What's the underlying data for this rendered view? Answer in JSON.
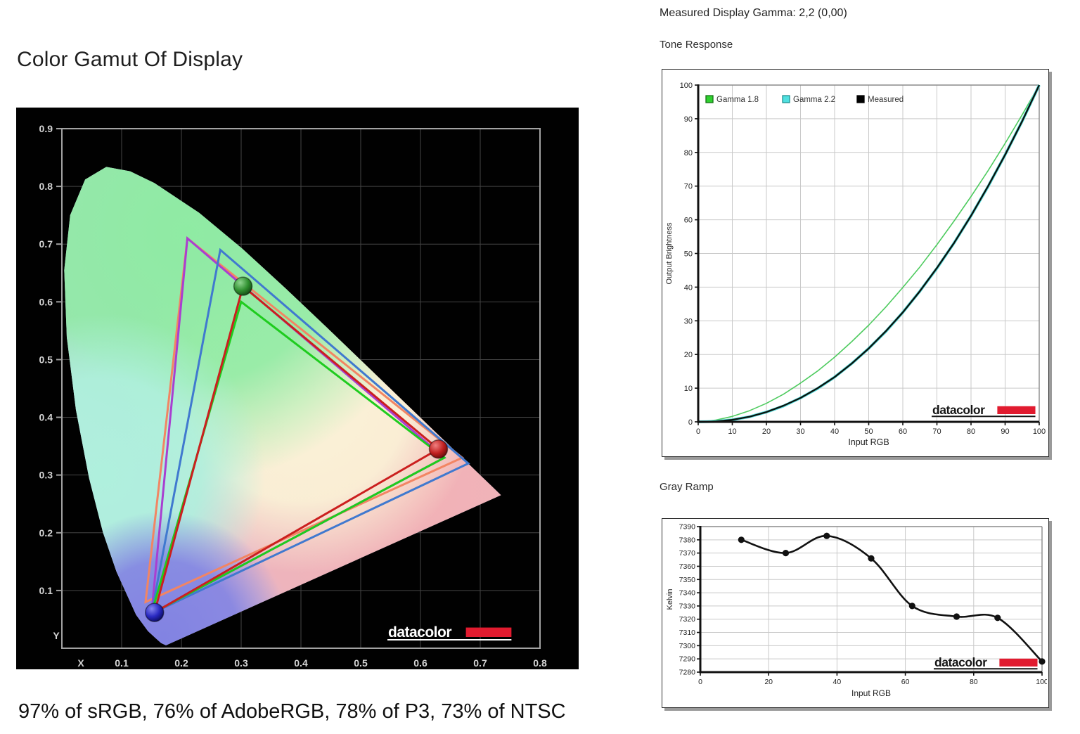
{
  "left_panel": {
    "title": "Color Gamut Of Display",
    "caption": "97% of sRGB, 76% of AdobeRGB, 78% of P3, 73% of NTSC"
  },
  "right_panel": {
    "gamma_heading": "Measured Display Gamma: 2,2 (0,00)",
    "tone_title": "Tone Response",
    "gray_title": "Gray Ramp"
  },
  "logo": {
    "text": "datacolor",
    "bar_color": "#e11b2f"
  },
  "chart_data": [
    {
      "id": "cie",
      "type": "scatter",
      "title": "Color Gamut Of Display",
      "xlabel": "X",
      "ylabel": "Y",
      "xlim": [
        0,
        0.8
      ],
      "ylim": [
        0,
        0.9
      ],
      "xticks": [
        0.1,
        0.2,
        0.3,
        0.4,
        0.5,
        0.6,
        0.7,
        0.8
      ],
      "yticks": [
        0.1,
        0.2,
        0.3,
        0.4,
        0.5,
        0.6,
        0.7,
        0.8,
        0.9
      ],
      "bg": "#010101",
      "grid_color": "#454545",
      "frame_color": "#a3a3a3",
      "tick_color": "#d4d4d4",
      "fill": {
        "base": "#cbc4f1",
        "green": "#8feba3",
        "cyan": "#aff0dd",
        "blue": "#8283e2",
        "pink": "#f2b2b6",
        "center": "#fbf7d9"
      },
      "locus": [
        [
          0.1741,
          0.005
        ],
        [
          0.166,
          0.009
        ],
        [
          0.1566,
          0.0177
        ],
        [
          0.144,
          0.0297
        ],
        [
          0.1241,
          0.0578
        ],
        [
          0.0913,
          0.1327
        ],
        [
          0.0687,
          0.2007
        ],
        [
          0.0454,
          0.295
        ],
        [
          0.0235,
          0.4127
        ],
        [
          0.0082,
          0.5384
        ],
        [
          0.0039,
          0.6548
        ],
        [
          0.0139,
          0.7502
        ],
        [
          0.0389,
          0.812
        ],
        [
          0.0743,
          0.8338
        ],
        [
          0.1142,
          0.8262
        ],
        [
          0.1547,
          0.8059
        ],
        [
          0.2296,
          0.7543
        ],
        [
          0.3016,
          0.6923
        ],
        [
          0.3731,
          0.6245
        ],
        [
          0.4441,
          0.5547
        ],
        [
          0.5125,
          0.4866
        ],
        [
          0.5752,
          0.4242
        ],
        [
          0.627,
          0.3725
        ],
        [
          0.6658,
          0.334
        ],
        [
          0.6915,
          0.3083
        ],
        [
          0.7079,
          0.292
        ],
        [
          0.719,
          0.2809
        ],
        [
          0.7347,
          0.2653
        ]
      ],
      "gamuts": [
        {
          "name": "NTSC",
          "color": "#f28563",
          "points": [
            [
              0.67,
              0.33
            ],
            [
              0.21,
              0.71
            ],
            [
              0.14,
              0.08
            ]
          ]
        },
        {
          "name": "AdobeRGB",
          "color": "#a93fd1",
          "points": [
            [
              0.64,
              0.33
            ],
            [
              0.21,
              0.71
            ],
            [
              0.15,
              0.06
            ]
          ]
        },
        {
          "name": "P3",
          "color": "#4079cf",
          "points": [
            [
              0.68,
              0.32
            ],
            [
              0.265,
              0.69
            ],
            [
              0.15,
              0.06
            ]
          ]
        },
        {
          "name": "sRGB",
          "color": "#1ecc1e",
          "points": [
            [
              0.64,
              0.33
            ],
            [
              0.3,
              0.6
            ],
            [
              0.15,
              0.06
            ]
          ]
        },
        {
          "name": "Measured",
          "color": "#cb1f1f",
          "points": [
            [
              0.63,
              0.345
            ],
            [
              0.303,
              0.627
            ],
            [
              0.155,
              0.062
            ]
          ]
        }
      ],
      "markers": [
        {
          "name": "green-primary",
          "xy": [
            0.303,
            0.627
          ],
          "colors": [
            "#8fd68f",
            "#2f8f2f",
            "#0f3f0f"
          ]
        },
        {
          "name": "red-primary",
          "xy": [
            0.63,
            0.345
          ],
          "colors": [
            "#f08080",
            "#c01f1f",
            "#570707"
          ]
        },
        {
          "name": "blue-primary",
          "xy": [
            0.155,
            0.062
          ],
          "colors": [
            "#8585f0",
            "#2828c0",
            "#080850"
          ]
        }
      ]
    },
    {
      "id": "tone",
      "type": "line",
      "title": "Tone Response",
      "xlabel": "Input RGB",
      "ylabel": "Output Brightness",
      "xlim": [
        0,
        100
      ],
      "ylim": [
        0,
        100
      ],
      "xticks": [
        0,
        10,
        20,
        30,
        40,
        50,
        60,
        70,
        80,
        90,
        100
      ],
      "yticks": [
        0,
        10,
        20,
        30,
        40,
        50,
        60,
        70,
        80,
        90,
        100
      ],
      "grid_color": "#c9c9c9",
      "legend": [
        {
          "label": "Gamma 1.8",
          "fill": "#2fd12f",
          "stroke": "#157015"
        },
        {
          "label": "Gamma 2.2",
          "fill": "#4fe0e0",
          "stroke": "#1f9090"
        },
        {
          "label": "Measured",
          "fill": "#000000",
          "stroke": "#000000"
        }
      ],
      "series": [
        {
          "name": "Gamma 1.8",
          "gamma": 1.8,
          "color": "#4ecb5f",
          "width": 1.6,
          "x": [
            0,
            5,
            10,
            15,
            20,
            25,
            30,
            35,
            40,
            45,
            50,
            55,
            60,
            65,
            70,
            75,
            80,
            85,
            90,
            95,
            100
          ],
          "y": [
            0,
            0.5,
            1.6,
            3.3,
            5.5,
            8.2,
            11.5,
            15.1,
            19.2,
            23.8,
            28.7,
            34.1,
            39.9,
            46.0,
            52.6,
            59.6,
            66.9,
            74.6,
            82.7,
            91.2,
            100
          ]
        },
        {
          "name": "Gamma 2.2",
          "gamma": 2.2,
          "color": "#54dcdc",
          "width": 4,
          "x": [
            0,
            5,
            10,
            15,
            20,
            25,
            30,
            35,
            40,
            45,
            50,
            55,
            60,
            65,
            70,
            75,
            80,
            85,
            90,
            95,
            100
          ],
          "y": [
            0,
            0.1,
            0.6,
            1.5,
            2.9,
            4.7,
            7.1,
            9.9,
            13.3,
            17.3,
            21.8,
            26.8,
            32.5,
            38.8,
            45.6,
            53.1,
            61.2,
            69.9,
            79.3,
            89.3,
            100
          ]
        },
        {
          "name": "Measured",
          "gamma": 2.2,
          "color": "#0a0f0a",
          "width": 2.3,
          "x": [
            0,
            5,
            10,
            15,
            20,
            25,
            30,
            35,
            40,
            45,
            50,
            55,
            60,
            65,
            70,
            75,
            80,
            85,
            90,
            95,
            100
          ],
          "y": [
            0,
            0.1,
            0.6,
            1.5,
            2.9,
            4.8,
            7.1,
            10.0,
            13.3,
            17.3,
            21.8,
            26.9,
            32.5,
            38.8,
            45.7,
            53.1,
            61.2,
            70.0,
            79.3,
            89.3,
            100
          ]
        }
      ]
    },
    {
      "id": "gray",
      "type": "line",
      "title": "Gray Ramp",
      "xlabel": "Input RGB",
      "ylabel": "Kelvin",
      "xlim": [
        0,
        100
      ],
      "ylim": [
        7280,
        7390
      ],
      "xticks": [
        0,
        20,
        40,
        60,
        80,
        100
      ],
      "yticks": [
        7280,
        7290,
        7300,
        7310,
        7320,
        7330,
        7340,
        7350,
        7360,
        7370,
        7380,
        7390
      ],
      "grid_color": "#c9c9c9",
      "line_color": "#111111",
      "points": {
        "x": [
          12,
          25,
          37,
          50,
          62,
          75,
          87,
          100
        ],
        "y": [
          7380,
          7370,
          7383,
          7366,
          7330,
          7322,
          7321,
          7288
        ]
      }
    }
  ]
}
